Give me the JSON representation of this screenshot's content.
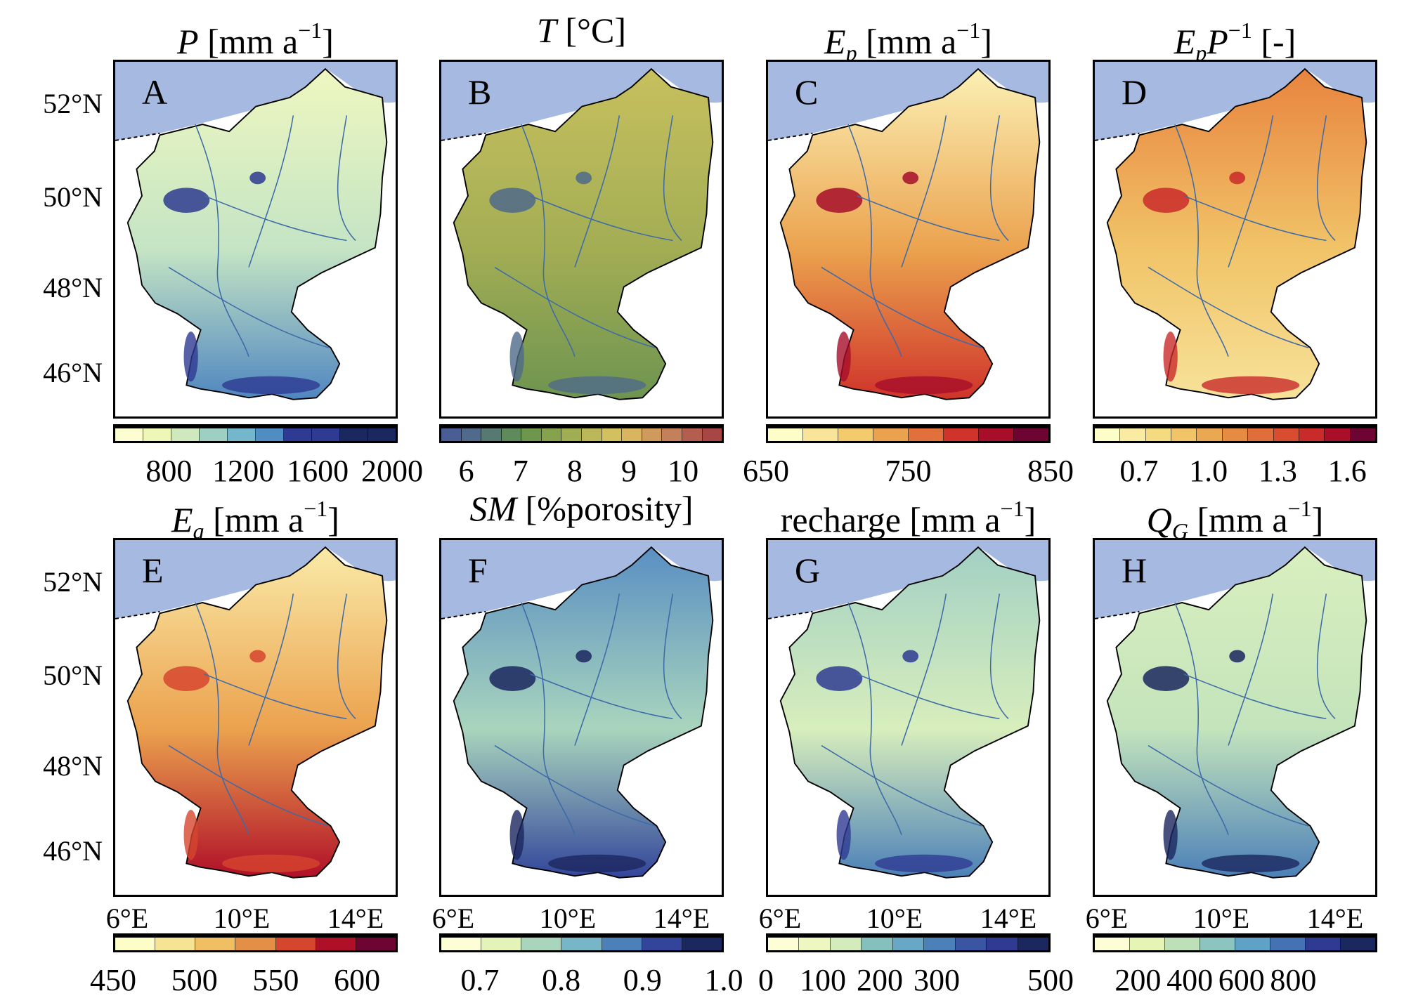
{
  "colors": {
    "sea": "#a6b9e0",
    "border": "#000000",
    "river": "#3d6aa8"
  },
  "lat_labels": [
    "52°N",
    "50°N",
    "48°N",
    "46°N"
  ],
  "lon_labels": [
    "6°E",
    "10°E",
    "14°E"
  ],
  "panels": [
    {
      "letter": "A",
      "title": {
        "sym": "P",
        "sub": "",
        "extra": "",
        "extra_sup": "",
        "unit": " [mm a",
        "unit_sup": "−1",
        "end": "]"
      },
      "colorbar": {
        "vmin": 500,
        "vmax": 2030,
        "ticks": [
          "800",
          "1200",
          "1600",
          "2000"
        ],
        "colors": [
          "#fdfdd2",
          "#eef7b6",
          "#cfe8bd",
          "#9dd0c3",
          "#74b6cc",
          "#4f8dc2",
          "#2f3b92",
          "#2f3b92",
          "#1b275f",
          "#1b275f"
        ]
      },
      "map": {
        "north": "#eef7c0",
        "mid": "#c4e4c4",
        "south": "#4f86c0",
        "spots": "#2e3a91"
      }
    },
    {
      "letter": "B",
      "title": {
        "sym": "T",
        "sub": "",
        "extra": "",
        "extra_sup": "",
        "unit": " [°C]",
        "unit_sup": "",
        "end": ""
      },
      "colorbar": {
        "vmin": 5.5,
        "vmax": 10.75,
        "ticks": [
          "6",
          "7",
          "8",
          "9",
          "10"
        ],
        "colors": [
          "#4a5d94",
          "#4f6a8a",
          "#567a72",
          "#5f8a5c",
          "#6e964c",
          "#86a24c",
          "#a1ad52",
          "#bcb85a",
          "#d3c15f",
          "#d8b55e",
          "#cf9a5c",
          "#c4805a",
          "#b55e50",
          "#a84646"
        ]
      },
      "map": {
        "north": "#c7c05e",
        "mid": "#a2ad54",
        "south": "#6e9450",
        "spots": "#4f6a8a"
      }
    },
    {
      "letter": "C",
      "title": {
        "sym": "E",
        "sub": "p",
        "extra": "",
        "extra_sup": "",
        "unit": " [mm a",
        "unit_sup": "−1",
        "end": "]"
      },
      "colorbar": {
        "vmin": 650,
        "vmax": 850,
        "ticks": [
          "650",
          "750",
          "850"
        ],
        "colors": [
          "#fdfdc8",
          "#f9e59a",
          "#f3ca6c",
          "#eba24e",
          "#e2703c",
          "#cf332a",
          "#a60e2a",
          "#6e0431"
        ]
      },
      "map": {
        "north": "#fbf0b4",
        "mid": "#eba24e",
        "south": "#cf332a",
        "spots": "#a60e2a"
      }
    },
    {
      "letter": "D",
      "title": {
        "sym": "E",
        "sub": "p",
        "extra": "P",
        "extra_sup": "−1",
        "unit": " [-]",
        "unit_sup": "",
        "end": ""
      },
      "colorbar": {
        "vmin": 0.5,
        "vmax": 1.73,
        "ticks": [
          "0.7",
          "1.0",
          "1.3",
          "1.6"
        ],
        "colors": [
          "#fdfdc8",
          "#f9eca2",
          "#f5db80",
          "#f1c468",
          "#eba852",
          "#e58c42",
          "#e06e3a",
          "#d84d30",
          "#c92a2a",
          "#a90f28",
          "#6e0431"
        ]
      },
      "map": {
        "north": "#e8843f",
        "mid": "#f1c468",
        "south": "#f7e29a",
        "spots": "#c92a2a"
      }
    },
    {
      "letter": "E",
      "title": {
        "sym": "E",
        "sub": "a",
        "extra": "",
        "extra_sup": "",
        "unit": " [mm a",
        "unit_sup": "−1",
        "end": "]"
      },
      "colorbar": {
        "vmin": 450,
        "vmax": 625,
        "ticks": [
          "450",
          "500",
          "550",
          "600"
        ],
        "colors": [
          "#fdfdc8",
          "#f7e394",
          "#f0bf64",
          "#e48f46",
          "#d6452e",
          "#b00f28",
          "#6e0431"
        ]
      },
      "map": {
        "north": "#faeaa8",
        "mid": "#eba24e",
        "south": "#b00f28",
        "spots": "#d6452e"
      }
    },
    {
      "letter": "F",
      "title": {
        "sym": "SM",
        "sub": "",
        "extra": "",
        "extra_sup": "",
        "unit": " [%porosity]",
        "unit_sup": "",
        "end": ""
      },
      "colorbar": {
        "vmin": 0.65,
        "vmax": 1.0,
        "ticks": [
          "0.7",
          "0.8",
          "0.9",
          "1.0"
        ],
        "colors": [
          "#fdfdd6",
          "#e4f3b8",
          "#a9d5bd",
          "#76b6c6",
          "#4b80b8",
          "#33459a",
          "#1b275f"
        ]
      },
      "map": {
        "north": "#5a8fc2",
        "mid": "#a9d5bd",
        "south": "#33459a",
        "spots": "#1b275f"
      }
    },
    {
      "letter": "G",
      "title": {
        "sym": "",
        "sub": "",
        "extra": "",
        "extra_sup": "",
        "unit": "recharge [mm a",
        "unit_sup": "−1",
        "end": "]"
      },
      "colorbar": {
        "vmin": 0,
        "vmax": 500,
        "ticks": [
          "0",
          "100",
          "200",
          "300",
          "500"
        ],
        "colors": [
          "#fdfdd6",
          "#eef7c0",
          "#d4ecbc",
          "#86c0bd",
          "#66a8c6",
          "#4b80b8",
          "#3a56a2",
          "#2f3b92",
          "#1b275f"
        ]
      },
      "map": {
        "north": "#a2d0c4",
        "mid": "#d8eebc",
        "south": "#4b80b8",
        "spots": "#2f3b92"
      }
    },
    {
      "letter": "H",
      "title": {
        "sym": "Q",
        "sub": "G",
        "extra": "",
        "extra_sup": "",
        "unit": " [mm a",
        "unit_sup": "−1",
        "end": "]"
      },
      "colorbar": {
        "vmin": 25,
        "vmax": 1125,
        "ticks": [
          "200",
          "400",
          "600",
          "800"
        ],
        "colors": [
          "#fdfdd6",
          "#e6f4b6",
          "#bde0b8",
          "#8cc4c0",
          "#5fa2c8",
          "#4572b2",
          "#2f3b92",
          "#1b275f"
        ]
      },
      "map": {
        "north": "#d9efbe",
        "mid": "#c4e4bc",
        "south": "#4b80b8",
        "spots": "#1b275f"
      }
    }
  ]
}
